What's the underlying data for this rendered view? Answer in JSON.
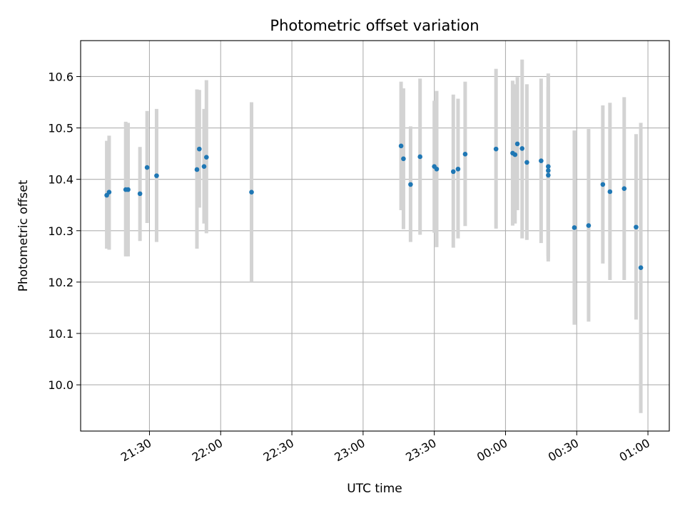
{
  "chart_data": {
    "type": "scatter",
    "title": "Photometric offset variation",
    "xlabel": "UTC time",
    "ylabel": "Photometric offset",
    "x_tick_labels": [
      "21:30",
      "22:00",
      "22:30",
      "23:00",
      "23:30",
      "00:00",
      "00:30",
      "01:00"
    ],
    "y_tick_labels": [
      "10.0",
      "10.1",
      "10.2",
      "10.3",
      "10.4",
      "10.5",
      "10.6"
    ],
    "xlim": [
      "21:01",
      "01:09"
    ],
    "ylim": [
      9.91,
      10.67
    ],
    "grid": true,
    "colors": {
      "points": "#1f77b4",
      "error_bars": "#d3d3d3"
    },
    "points": [
      {
        "t": "21:12",
        "y": 10.369,
        "lo": 10.265,
        "hi": 10.475
      },
      {
        "t": "21:13",
        "y": 10.375,
        "lo": 10.263,
        "hi": 10.485
      },
      {
        "t": "21:20",
        "y": 10.38,
        "lo": 10.25,
        "hi": 10.512
      },
      {
        "t": "21:21",
        "y": 10.38,
        "lo": 10.25,
        "hi": 10.51
      },
      {
        "t": "21:26",
        "y": 10.372,
        "lo": 10.28,
        "hi": 10.463
      },
      {
        "t": "21:29",
        "y": 10.423,
        "lo": 10.315,
        "hi": 10.533
      },
      {
        "t": "21:33",
        "y": 10.407,
        "lo": 10.278,
        "hi": 10.537
      },
      {
        "t": "21:50",
        "y": 10.419,
        "lo": 10.265,
        "hi": 10.575
      },
      {
        "t": "21:51",
        "y": 10.459,
        "lo": 10.345,
        "hi": 10.574
      },
      {
        "t": "21:53",
        "y": 10.425,
        "lo": 10.314,
        "hi": 10.537
      },
      {
        "t": "21:54",
        "y": 10.443,
        "lo": 10.295,
        "hi": 10.593
      },
      {
        "t": "22:13",
        "y": 10.375,
        "lo": 10.2,
        "hi": 10.55
      },
      {
        "t": "23:16",
        "y": 10.465,
        "lo": 10.34,
        "hi": 10.59
      },
      {
        "t": "23:17",
        "y": 10.44,
        "lo": 10.303,
        "hi": 10.577
      },
      {
        "t": "23:20",
        "y": 10.39,
        "lo": 10.278,
        "hi": 10.503
      },
      {
        "t": "23:24",
        "y": 10.444,
        "lo": 10.292,
        "hi": 10.596
      },
      {
        "t": "23:30",
        "y": 10.425,
        "lo": 10.296,
        "hi": 10.553
      },
      {
        "t": "23:31",
        "y": 10.42,
        "lo": 10.268,
        "hi": 10.572
      },
      {
        "t": "23:38",
        "y": 10.415,
        "lo": 10.267,
        "hi": 10.565
      },
      {
        "t": "23:40",
        "y": 10.42,
        "lo": 10.285,
        "hi": 10.557
      },
      {
        "t": "23:43",
        "y": 10.449,
        "lo": 10.309,
        "hi": 10.59
      },
      {
        "t": "23:56",
        "y": 10.459,
        "lo": 10.304,
        "hi": 10.615
      },
      {
        "t": "00:03",
        "y": 10.451,
        "lo": 10.31,
        "hi": 10.592
      },
      {
        "t": "00:04",
        "y": 10.448,
        "lo": 10.314,
        "hi": 10.585
      },
      {
        "t": "00:05",
        "y": 10.469,
        "lo": 10.34,
        "hi": 10.599
      },
      {
        "t": "00:07",
        "y": 10.46,
        "lo": 10.285,
        "hi": 10.633
      },
      {
        "t": "00:09",
        "y": 10.433,
        "lo": 10.282,
        "hi": 10.585
      },
      {
        "t": "00:15",
        "y": 10.436,
        "lo": 10.276,
        "hi": 10.596
      },
      {
        "t": "00:18",
        "y": 10.417,
        "lo": 10.24,
        "hi": 10.58
      },
      {
        "t": "00:18",
        "y": 10.408,
        "lo": 10.245,
        "hi": 10.6
      },
      {
        "t": "00:18",
        "y": 10.425,
        "lo": 10.25,
        "hi": 10.606
      },
      {
        "t": "00:29",
        "y": 10.306,
        "lo": 10.117,
        "hi": 10.495
      },
      {
        "t": "00:35",
        "y": 10.31,
        "lo": 10.123,
        "hi": 10.498
      },
      {
        "t": "00:41",
        "y": 10.39,
        "lo": 10.236,
        "hi": 10.544
      },
      {
        "t": "00:44",
        "y": 10.376,
        "lo": 10.204,
        "hi": 10.549
      },
      {
        "t": "00:50",
        "y": 10.382,
        "lo": 10.204,
        "hi": 10.56
      },
      {
        "t": "00:55",
        "y": 10.307,
        "lo": 10.127,
        "hi": 10.488
      },
      {
        "t": "00:57",
        "y": 10.228,
        "lo": 9.945,
        "hi": 10.51
      }
    ]
  }
}
